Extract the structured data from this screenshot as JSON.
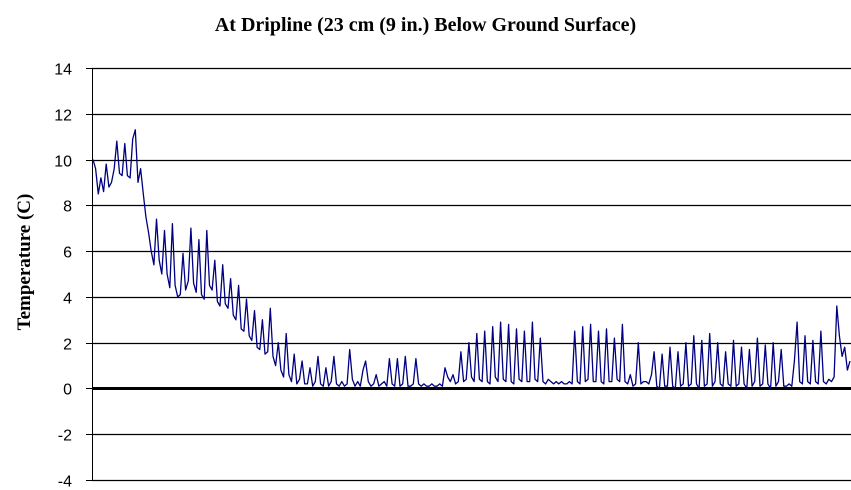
{
  "chart_data": {
    "type": "line",
    "title": "At Dripline (23 cm (9 in.) Below Ground Surface)",
    "xlabel": "",
    "ylabel": "Temperature (C)",
    "ylim": [
      -4,
      14
    ],
    "yticks": [
      -4,
      -2,
      0,
      2,
      4,
      6,
      8,
      10,
      12,
      14
    ],
    "grid": true,
    "legend": "none",
    "series_color": "#000080",
    "series": [
      {
        "values": [
          10.0,
          9.6,
          8.5,
          9.2,
          8.6,
          9.8,
          8.8,
          9.0,
          9.6,
          10.8,
          9.4,
          9.3,
          10.7,
          9.3,
          9.2,
          10.9,
          11.3,
          9.0,
          9.6,
          8.5,
          7.5,
          6.8,
          6.0,
          5.4,
          7.4,
          5.6,
          5.0,
          6.9,
          5.0,
          4.4,
          7.2,
          4.5,
          4.0,
          4.1,
          5.9,
          4.3,
          4.7,
          7.0,
          4.6,
          4.2,
          6.5,
          4.1,
          3.9,
          6.9,
          4.5,
          4.3,
          5.6,
          3.8,
          3.6,
          5.4,
          3.7,
          3.5,
          4.8,
          3.2,
          3.0,
          4.5,
          2.6,
          2.5,
          3.9,
          2.3,
          2.1,
          3.4,
          1.8,
          1.7,
          3.0,
          1.5,
          1.6,
          3.5,
          1.4,
          1.0,
          2.0,
          0.8,
          0.5,
          2.4,
          0.6,
          0.3,
          1.5,
          0.2,
          0.4,
          1.2,
          0.2,
          0.2,
          0.9,
          0.1,
          0.3,
          1.4,
          0.2,
          0.1,
          0.9,
          0.1,
          0.3,
          1.4,
          0.2,
          0.1,
          0.3,
          0.1,
          0.2,
          1.7,
          0.4,
          0.1,
          0.3,
          0.1,
          0.8,
          1.2,
          0.3,
          0.1,
          0.2,
          0.6,
          0.1,
          0.2,
          0.3,
          0.1,
          1.3,
          0.2,
          0.1,
          1.3,
          0.1,
          0.2,
          1.4,
          0.1,
          0.1,
          0.2,
          1.3,
          0.2,
          0.1,
          0.2,
          0.1,
          0.1,
          0.2,
          0.1,
          0.1,
          0.2,
          0.1,
          0.9,
          0.5,
          0.3,
          0.6,
          0.2,
          0.3,
          1.6,
          0.3,
          0.4,
          2.0,
          0.5,
          0.3,
          2.4,
          0.4,
          0.3,
          2.5,
          0.3,
          0.2,
          2.7,
          0.5,
          0.3,
          2.9,
          0.4,
          0.3,
          2.8,
          0.3,
          0.2,
          2.6,
          0.4,
          0.3,
          2.5,
          0.3,
          0.3,
          2.9,
          0.4,
          0.3,
          2.2,
          0.3,
          0.2,
          0.4,
          0.3,
          0.2,
          0.3,
          0.2,
          0.3,
          0.2,
          0.2,
          0.3,
          0.2,
          2.5,
          0.3,
          0.2,
          2.7,
          0.3,
          0.4,
          2.8,
          0.3,
          0.3,
          2.5,
          0.3,
          0.2,
          2.6,
          0.3,
          0.3,
          2.2,
          0.4,
          0.3,
          2.8,
          0.3,
          0.2,
          0.6,
          0.1,
          0.2,
          2.0,
          0.2,
          0.3,
          0.3,
          0.2,
          0.6,
          1.6,
          0.1,
          0.0,
          1.5,
          0.1,
          0.1,
          1.8,
          0.1,
          0.0,
          1.6,
          0.1,
          0.2,
          2.0,
          0.1,
          0.2,
          2.3,
          0.2,
          0.0,
          2.1,
          0.1,
          0.2,
          2.4,
          0.1,
          0.3,
          2.0,
          0.2,
          0.1,
          1.6,
          0.2,
          0.1,
          2.1,
          0.1,
          0.2,
          1.8,
          0.2,
          0.0,
          1.7,
          0.1,
          0.3,
          2.2,
          0.1,
          0.2,
          1.9,
          0.2,
          0.0,
          2.0,
          0.1,
          0.3,
          1.7,
          0.1,
          0.1,
          0.2,
          0.1,
          1.2,
          2.9,
          0.3,
          0.2,
          2.3,
          0.3,
          0.2,
          2.1,
          0.3,
          0.2,
          2.5,
          0.3,
          0.2,
          0.4,
          0.3,
          0.5,
          3.6,
          2.3,
          1.4,
          1.8,
          0.8,
          1.2
        ]
      }
    ]
  }
}
